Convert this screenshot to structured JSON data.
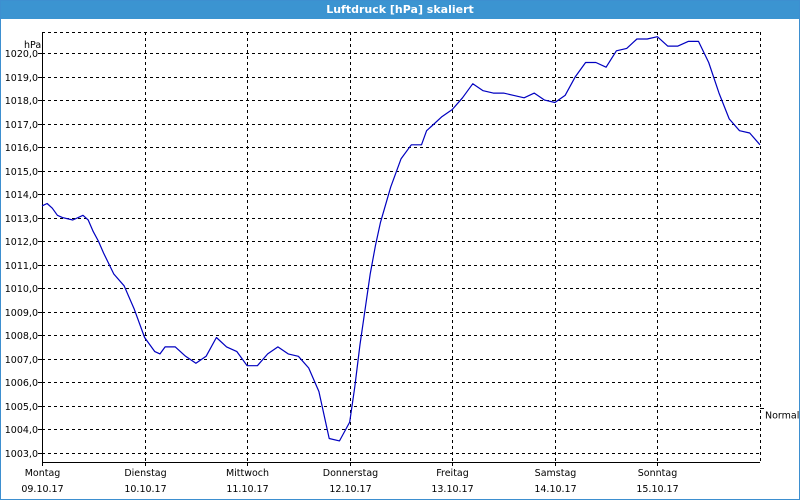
{
  "window": {
    "title": "Luftdruck [hPa] skaliert"
  },
  "colors": {
    "titlebar": "#3b94d1",
    "line": "#0000c0",
    "grid": "#000000"
  },
  "chart_data": {
    "type": "line",
    "title": "Luftdruck [hPa] skaliert",
    "ylabel": "hPa",
    "ylim": [
      1002.6,
      1020.9
    ],
    "xlim": [
      0,
      7
    ],
    "y_ticks": [
      1003.0,
      1004.0,
      1005.0,
      1006.0,
      1007.0,
      1008.0,
      1009.0,
      1010.0,
      1011.0,
      1012.0,
      1013.0,
      1014.0,
      1015.0,
      1016.0,
      1017.0,
      1018.0,
      1019.0,
      1020.0
    ],
    "y_tick_labels": [
      "1003,0",
      "1004,0",
      "1005,0",
      "1006,0",
      "1007,0",
      "1008,0",
      "1009,0",
      "1010,0",
      "1011,0",
      "1012,0",
      "1013,0",
      "1014,0",
      "1015,0",
      "1016,0",
      "1017,0",
      "1018,0",
      "1019,0",
      "1020,0"
    ],
    "x_tick_labels": [
      {
        "day": "Montag",
        "date": "09.10.17"
      },
      {
        "day": "Dienstag",
        "date": "10.10.17"
      },
      {
        "day": "Mittwoch",
        "date": "11.10.17"
      },
      {
        "day": "Donnerstag",
        "date": "12.10.17"
      },
      {
        "day": "Freitag",
        "date": "13.10.17"
      },
      {
        "day": "Samstag",
        "date": "14.10.17"
      },
      {
        "day": "Sonntag",
        "date": "15.10.17"
      }
    ],
    "reference_line": {
      "label": "Normal",
      "value": 1004.9
    },
    "grid": true,
    "series": [
      {
        "x": [
          0.0,
          0.05,
          0.1,
          0.15,
          0.2,
          0.3,
          0.4,
          0.45,
          0.5,
          0.55,
          0.6,
          0.7,
          0.8,
          0.9,
          1.0,
          1.1,
          1.15,
          1.2,
          1.25,
          1.3,
          1.4,
          1.5,
          1.6,
          1.7,
          1.8,
          1.9,
          2.0,
          2.1,
          2.2,
          2.3,
          2.4,
          2.5,
          2.6,
          2.7,
          2.8,
          2.9,
          3.0,
          3.05,
          3.1,
          3.15,
          3.2,
          3.25,
          3.3,
          3.4,
          3.5,
          3.6,
          3.7,
          3.75,
          3.8,
          3.9,
          4.0,
          4.1,
          4.2,
          4.3,
          4.4,
          4.5,
          4.6,
          4.7,
          4.8,
          4.9,
          5.0,
          5.1,
          5.2,
          5.3,
          5.4,
          5.5,
          5.6,
          5.7,
          5.8,
          5.9,
          6.0,
          6.1,
          6.2,
          6.3,
          6.4,
          6.5,
          6.6,
          6.7,
          6.8,
          6.9,
          7.0
        ],
        "y": [
          1013.5,
          1013.6,
          1013.4,
          1013.1,
          1013.0,
          1012.9,
          1013.1,
          1012.9,
          1012.4,
          1012.0,
          1011.5,
          1010.6,
          1010.1,
          1009.1,
          1007.9,
          1007.3,
          1007.2,
          1007.5,
          1007.5,
          1007.5,
          1007.1,
          1006.8,
          1007.1,
          1007.9,
          1007.5,
          1007.3,
          1006.7,
          1006.7,
          1007.2,
          1007.5,
          1007.2,
          1007.1,
          1006.6,
          1005.6,
          1003.6,
          1003.5,
          1004.3,
          1005.8,
          1007.6,
          1009.1,
          1010.6,
          1011.8,
          1012.8,
          1014.3,
          1015.5,
          1016.1,
          1016.1,
          1016.7,
          1016.9,
          1017.3,
          1017.6,
          1018.1,
          1018.7,
          1018.4,
          1018.3,
          1018.3,
          1018.2,
          1018.1,
          1018.3,
          1018.0,
          1017.9,
          1018.2,
          1019.0,
          1019.6,
          1019.6,
          1019.4,
          1020.1,
          1020.2,
          1020.6,
          1020.6,
          1020.7,
          1020.3,
          1020.3,
          1020.5,
          1020.5,
          1019.6,
          1018.3,
          1017.2,
          1016.7,
          1016.6,
          1016.1
        ]
      }
    ]
  }
}
